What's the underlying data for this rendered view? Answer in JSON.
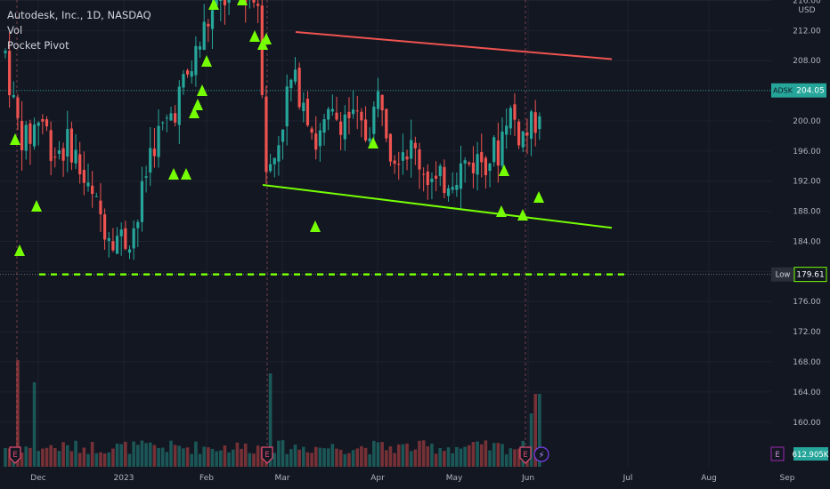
{
  "header": {
    "symbol_line": "Autodesk, Inc., 1D, NASDAQ",
    "study_line": "Vol",
    "indicator_line": "Pocket Pivot"
  },
  "chart_data": {
    "type": "candlestick",
    "currency": "USD",
    "ylim": [
      158,
      218
    ],
    "y_ticks": [
      160,
      164,
      168,
      172,
      176,
      180,
      184,
      188,
      192,
      196,
      200,
      204,
      208,
      212,
      216
    ],
    "x_labels": [
      "Dec",
      "2023",
      "Feb",
      "Mar",
      "Apr",
      "May",
      "Jun",
      "Jul",
      "Aug",
      "Sep"
    ],
    "last_price_label": {
      "name": "ADSK",
      "value": 204.05
    },
    "low_line": {
      "name": "Low",
      "value": 179.61
    },
    "trendlines": [
      {
        "color": "#ef5350",
        "start": [
          "Mar",
          211.8
        ],
        "end": [
          "Jul",
          208.2
        ]
      },
      {
        "color": "#76ff03",
        "start": [
          "Feb",
          191.5
        ],
        "end": [
          "Jul",
          185.8
        ]
      }
    ],
    "volume_label": "612.905K",
    "event_markers": [
      "E",
      "E",
      "E",
      "E"
    ],
    "up_color": "#26a69a",
    "down_color": "#ef5350",
    "signal_color": "#76ff03"
  }
}
